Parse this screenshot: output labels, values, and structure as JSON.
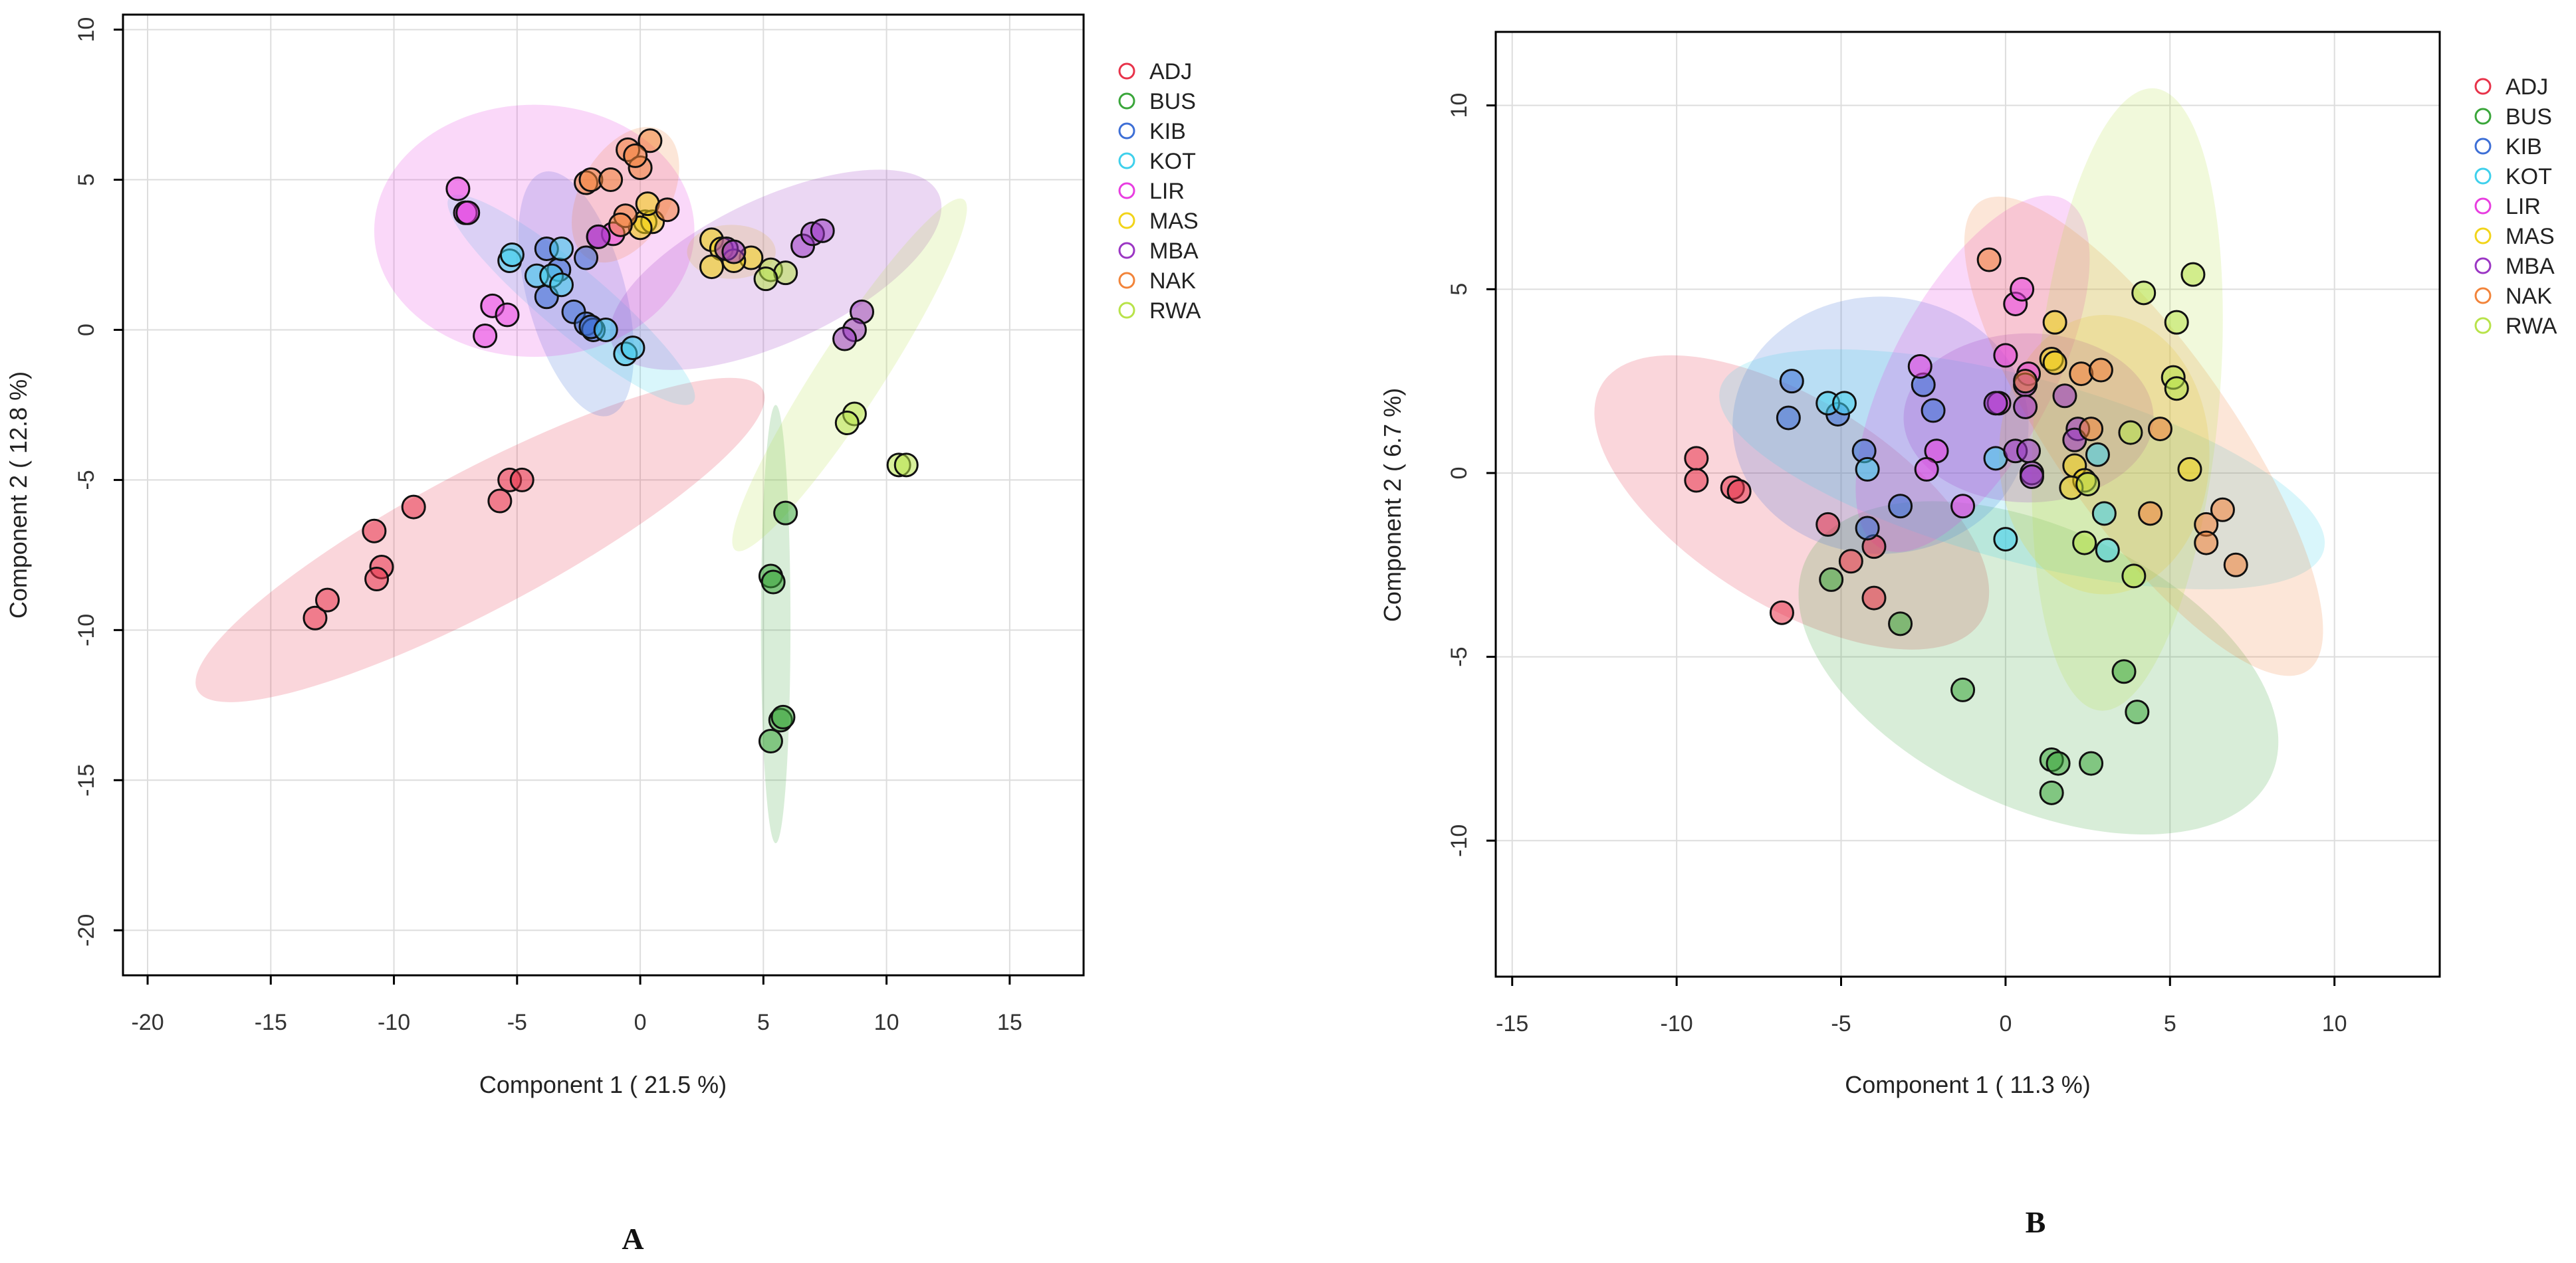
{
  "figure": {
    "group_colors": {
      "ADJ": "#e8334a",
      "BUS": "#3aa63a",
      "KIB": "#3d6fd6",
      "KOT": "#3fd0ec",
      "LIR": "#e83ee0",
      "MAS": "#f2d41a",
      "MBA": "#9b36c4",
      "NAK": "#f2843a",
      "RWA": "#b8e34a"
    }
  },
  "chart_data": [
    {
      "panel": "A",
      "type": "scatter",
      "xlabel": "Component 1 ( 21.5 %)",
      "ylabel": "Component 2 ( 12.8 %)",
      "xlim": [
        -21,
        18
      ],
      "ylim": [
        -21.5,
        10.5
      ],
      "xticks": [
        -20,
        -15,
        -10,
        -5,
        0,
        5,
        10,
        15
      ],
      "yticks": [
        -20,
        -15,
        -10,
        -5,
        0,
        5,
        10
      ],
      "grid": true,
      "legend_position": "top-right",
      "legend": [
        "ADJ",
        "BUS",
        "KIB",
        "KOT",
        "LIR",
        "MAS",
        "MBA",
        "NAK",
        "RWA"
      ],
      "ellipses": [
        {
          "group": "ADJ",
          "cx": -6.5,
          "cy": -7.0,
          "rx": 13,
          "ry": 2.3,
          "angle_deg": 28
        },
        {
          "group": "BUS",
          "cx": 5.5,
          "cy": -9.8,
          "rx": 0.6,
          "ry": 7.3,
          "angle_deg": 0
        },
        {
          "group": "KIB",
          "cx": -2.6,
          "cy": 1.2,
          "rx": 2.0,
          "ry": 4.2,
          "angle_deg": 15
        },
        {
          "group": "KOT",
          "cx": -2.8,
          "cy": 1.0,
          "rx": 1.3,
          "ry": 5.3,
          "angle_deg": 50
        },
        {
          "group": "LIR",
          "cx": -4.3,
          "cy": 3.3,
          "rx": 6.5,
          "ry": 4.2,
          "angle_deg": 0
        },
        {
          "group": "MAS",
          "cx": 3.7,
          "cy": 2.6,
          "rx": 1.8,
          "ry": 0.9,
          "angle_deg": 0
        },
        {
          "group": "MBA",
          "cx": 5.5,
          "cy": 2.0,
          "rx": 7.3,
          "ry": 2.4,
          "angle_deg": 25
        },
        {
          "group": "NAK",
          "cx": -0.6,
          "cy": 4.5,
          "rx": 3.0,
          "ry": 1.5,
          "angle_deg": 60
        },
        {
          "group": "RWA",
          "cx": 8.5,
          "cy": -1.5,
          "rx": 8.5,
          "ry": 1.1,
          "angle_deg": 57
        }
      ],
      "points": [
        {
          "group": "ADJ",
          "x": -13.2,
          "y": -9.6
        },
        {
          "group": "ADJ",
          "x": -12.7,
          "y": -9.0
        },
        {
          "group": "ADJ",
          "x": -10.8,
          "y": -6.7
        },
        {
          "group": "ADJ",
          "x": -10.5,
          "y": -7.9
        },
        {
          "group": "ADJ",
          "x": -10.7,
          "y": -8.3
        },
        {
          "group": "ADJ",
          "x": -9.2,
          "y": -5.9
        },
        {
          "group": "ADJ",
          "x": -5.7,
          "y": -5.7
        },
        {
          "group": "ADJ",
          "x": -5.3,
          "y": -5.0
        },
        {
          "group": "ADJ",
          "x": -4.8,
          "y": -5.0
        },
        {
          "group": "BUS",
          "x": 5.9,
          "y": -6.1
        },
        {
          "group": "BUS",
          "x": 5.3,
          "y": -8.2
        },
        {
          "group": "BUS",
          "x": 5.4,
          "y": -8.4
        },
        {
          "group": "BUS",
          "x": 5.7,
          "y": -13.0
        },
        {
          "group": "BUS",
          "x": 5.8,
          "y": -12.9
        },
        {
          "group": "BUS",
          "x": 5.3,
          "y": -13.7
        },
        {
          "group": "KIB",
          "x": -3.8,
          "y": 2.7
        },
        {
          "group": "KIB",
          "x": -3.3,
          "y": 2.0
        },
        {
          "group": "KIB",
          "x": -2.2,
          "y": 2.4
        },
        {
          "group": "KIB",
          "x": -3.8,
          "y": 1.1
        },
        {
          "group": "KIB",
          "x": -2.7,
          "y": 0.6
        },
        {
          "group": "KIB",
          "x": -2.2,
          "y": 0.2
        },
        {
          "group": "KIB",
          "x": -1.9,
          "y": 0.0
        },
        {
          "group": "KIB",
          "x": -2.0,
          "y": 0.1
        },
        {
          "group": "KOT",
          "x": -5.3,
          "y": 2.3
        },
        {
          "group": "KOT",
          "x": -5.2,
          "y": 2.5
        },
        {
          "group": "KOT",
          "x": -3.2,
          "y": 2.7
        },
        {
          "group": "KOT",
          "x": -4.2,
          "y": 1.8
        },
        {
          "group": "KOT",
          "x": -3.6,
          "y": 1.8
        },
        {
          "group": "KOT",
          "x": -3.2,
          "y": 1.5
        },
        {
          "group": "KOT",
          "x": -1.4,
          "y": 0.0
        },
        {
          "group": "KOT",
          "x": -0.6,
          "y": -0.8
        },
        {
          "group": "KOT",
          "x": -0.3,
          "y": -0.6
        },
        {
          "group": "LIR",
          "x": -7.4,
          "y": 4.7
        },
        {
          "group": "LIR",
          "x": -7.1,
          "y": 3.9
        },
        {
          "group": "LIR",
          "x": -7.0,
          "y": 3.9
        },
        {
          "group": "LIR",
          "x": -6.0,
          "y": 0.8
        },
        {
          "group": "LIR",
          "x": -5.4,
          "y": 0.5
        },
        {
          "group": "LIR",
          "x": -6.3,
          "y": -0.2
        },
        {
          "group": "LIR",
          "x": -1.1,
          "y": 3.2
        },
        {
          "group": "LIR",
          "x": -1.7,
          "y": 3.1
        },
        {
          "group": "MAS",
          "x": 2.9,
          "y": 3.0
        },
        {
          "group": "MAS",
          "x": 3.3,
          "y": 2.7
        },
        {
          "group": "MAS",
          "x": 2.9,
          "y": 2.1
        },
        {
          "group": "MAS",
          "x": 4.5,
          "y": 2.4
        },
        {
          "group": "MAS",
          "x": 3.8,
          "y": 2.3
        },
        {
          "group": "MAS",
          "x": 0.2,
          "y": 3.6
        },
        {
          "group": "MAS",
          "x": 0.5,
          "y": 3.6
        },
        {
          "group": "MAS",
          "x": 0.0,
          "y": 3.4
        },
        {
          "group": "MAS",
          "x": 0.3,
          "y": 4.2
        },
        {
          "group": "MBA",
          "x": -1.7,
          "y": 3.1
        },
        {
          "group": "MBA",
          "x": 3.5,
          "y": 2.7
        },
        {
          "group": "MBA",
          "x": 3.8,
          "y": 2.6
        },
        {
          "group": "MBA",
          "x": 6.6,
          "y": 2.8
        },
        {
          "group": "MBA",
          "x": 7.0,
          "y": 3.2
        },
        {
          "group": "MBA",
          "x": 7.4,
          "y": 3.3
        },
        {
          "group": "MBA",
          "x": 9.0,
          "y": 0.6
        },
        {
          "group": "MBA",
          "x": 8.7,
          "y": 0.0
        },
        {
          "group": "MBA",
          "x": 8.3,
          "y": -0.3
        },
        {
          "group": "NAK",
          "x": -2.2,
          "y": 4.9
        },
        {
          "group": "NAK",
          "x": -2.0,
          "y": 5.0
        },
        {
          "group": "NAK",
          "x": -1.2,
          "y": 5.0
        },
        {
          "group": "NAK",
          "x": -0.5,
          "y": 6.0
        },
        {
          "group": "NAK",
          "x": 0.4,
          "y": 6.3
        },
        {
          "group": "NAK",
          "x": 0.0,
          "y": 5.4
        },
        {
          "group": "NAK",
          "x": -0.2,
          "y": 5.8
        },
        {
          "group": "NAK",
          "x": -0.6,
          "y": 3.8
        },
        {
          "group": "NAK",
          "x": -0.8,
          "y": 3.5
        },
        {
          "group": "NAK",
          "x": 1.1,
          "y": 4.0
        },
        {
          "group": "RWA",
          "x": 5.3,
          "y": 2.0
        },
        {
          "group": "RWA",
          "x": 5.9,
          "y": 1.9
        },
        {
          "group": "RWA",
          "x": 5.1,
          "y": 1.7
        },
        {
          "group": "RWA",
          "x": 8.7,
          "y": -2.8
        },
        {
          "group": "RWA",
          "x": 8.4,
          "y": -3.1
        },
        {
          "group": "RWA",
          "x": 10.5,
          "y": -4.5
        },
        {
          "group": "RWA",
          "x": 10.8,
          "y": -4.5
        }
      ]
    },
    {
      "panel": "B",
      "type": "scatter",
      "xlabel": "Component 1 ( 11.3 %)",
      "ylabel": "Component 2 ( 6.7 %)",
      "xlim": [
        -15.5,
        13.2
      ],
      "ylim": [
        -13.7,
        12.0
      ],
      "xticks": [
        -15,
        -10,
        -5,
        0,
        5,
        10
      ],
      "yticks": [
        -10,
        -5,
        0,
        5,
        10
      ],
      "grid": true,
      "legend_position": "top-right",
      "legend": [
        "ADJ",
        "BUS",
        "KIB",
        "KOT",
        "LIR",
        "MAS",
        "MBA",
        "NAK",
        "RWA"
      ],
      "ellipses": [
        {
          "group": "ADJ",
          "cx": -6.5,
          "cy": -0.8,
          "rx": 6.8,
          "ry": 2.8,
          "angle_deg": -32
        },
        {
          "group": "BUS",
          "cx": 1.0,
          "cy": -5.3,
          "rx": 7.8,
          "ry": 3.8,
          "angle_deg": -25
        },
        {
          "group": "KIB",
          "cx": -3.8,
          "cy": 1.3,
          "rx": 4.5,
          "ry": 3.5,
          "angle_deg": 0
        },
        {
          "group": "KOT",
          "cx": 0.5,
          "cy": 0.1,
          "rx": 9.5,
          "ry": 2.5,
          "angle_deg": -15
        },
        {
          "group": "LIR",
          "cx": -1.0,
          "cy": 2.7,
          "rx": 6.0,
          "ry": 2.2,
          "angle_deg": 62
        },
        {
          "group": "MAS",
          "cx": 3.0,
          "cy": 0.5,
          "rx": 3.2,
          "ry": 3.8,
          "angle_deg": 0
        },
        {
          "group": "MBA",
          "cx": 0.7,
          "cy": 1.5,
          "rx": 3.8,
          "ry": 2.3,
          "angle_deg": 0
        },
        {
          "group": "NAK",
          "cx": 4.2,
          "cy": 1.0,
          "rx": 8.7,
          "ry": 2.4,
          "angle_deg": -55
        },
        {
          "group": "RWA",
          "cx": 3.7,
          "cy": 2.0,
          "rx": 9.5,
          "ry": 2.5,
          "angle_deg": 85
        }
      ],
      "points": [
        {
          "group": "ADJ",
          "x": -9.4,
          "y": 0.4
        },
        {
          "group": "ADJ",
          "x": -9.4,
          "y": -0.2
        },
        {
          "group": "ADJ",
          "x": -8.3,
          "y": -0.4
        },
        {
          "group": "ADJ",
          "x": -8.1,
          "y": -0.5
        },
        {
          "group": "ADJ",
          "x": -6.8,
          "y": -3.8
        },
        {
          "group": "ADJ",
          "x": -5.4,
          "y": -1.4
        },
        {
          "group": "ADJ",
          "x": -4.7,
          "y": -2.4
        },
        {
          "group": "ADJ",
          "x": -4.0,
          "y": -2.0
        },
        {
          "group": "ADJ",
          "x": -4.0,
          "y": -3.4
        },
        {
          "group": "BUS",
          "x": -5.3,
          "y": -2.9
        },
        {
          "group": "BUS",
          "x": -3.2,
          "y": -4.1
        },
        {
          "group": "BUS",
          "x": -1.3,
          "y": -5.9
        },
        {
          "group": "BUS",
          "x": 3.6,
          "y": -5.4
        },
        {
          "group": "BUS",
          "x": 4.0,
          "y": -6.5
        },
        {
          "group": "BUS",
          "x": 1.4,
          "y": -7.8
        },
        {
          "group": "BUS",
          "x": 1.6,
          "y": -7.9
        },
        {
          "group": "BUS",
          "x": 2.6,
          "y": -7.9
        },
        {
          "group": "BUS",
          "x": 1.4,
          "y": -8.7
        },
        {
          "group": "KIB",
          "x": -6.6,
          "y": 1.5
        },
        {
          "group": "KIB",
          "x": -6.5,
          "y": 2.5
        },
        {
          "group": "KIB",
          "x": -5.1,
          "y": 1.6
        },
        {
          "group": "KIB",
          "x": -4.3,
          "y": 0.6
        },
        {
          "group": "KIB",
          "x": -3.2,
          "y": -0.9
        },
        {
          "group": "KIB",
          "x": -4.2,
          "y": -1.5
        },
        {
          "group": "KIB",
          "x": -2.5,
          "y": 2.4
        },
        {
          "group": "KIB",
          "x": -2.2,
          "y": 1.7
        },
        {
          "group": "KOT",
          "x": -5.4,
          "y": 1.9
        },
        {
          "group": "KOT",
          "x": -4.9,
          "y": 1.9
        },
        {
          "group": "KOT",
          "x": -4.2,
          "y": 0.1
        },
        {
          "group": "KOT",
          "x": -0.3,
          "y": 0.4
        },
        {
          "group": "KOT",
          "x": 0.0,
          "y": -1.8
        },
        {
          "group": "KOT",
          "x": 2.8,
          "y": 0.5
        },
        {
          "group": "KOT",
          "x": 3.0,
          "y": -1.1
        },
        {
          "group": "KOT",
          "x": 3.1,
          "y": -2.1
        },
        {
          "group": "LIR",
          "x": -2.6,
          "y": 2.9
        },
        {
          "group": "LIR",
          "x": -2.1,
          "y": 0.6
        },
        {
          "group": "LIR",
          "x": -2.4,
          "y": 0.1
        },
        {
          "group": "LIR",
          "x": -1.3,
          "y": -0.9
        },
        {
          "group": "LIR",
          "x": -0.2,
          "y": 1.9
        },
        {
          "group": "LIR",
          "x": 0.0,
          "y": 3.2
        },
        {
          "group": "LIR",
          "x": 0.3,
          "y": 4.6
        },
        {
          "group": "LIR",
          "x": 0.5,
          "y": 5.0
        },
        {
          "group": "LIR",
          "x": 0.7,
          "y": 2.7
        },
        {
          "group": "MAS",
          "x": 1.5,
          "y": 4.1
        },
        {
          "group": "MAS",
          "x": 1.4,
          "y": 3.1
        },
        {
          "group": "MAS",
          "x": 1.5,
          "y": 3.0
        },
        {
          "group": "MAS",
          "x": 2.1,
          "y": 0.2
        },
        {
          "group": "MAS",
          "x": 2.4,
          "y": -0.2
        },
        {
          "group": "MAS",
          "x": 2.0,
          "y": -0.4
        },
        {
          "group": "MAS",
          "x": 5.6,
          "y": 0.1
        },
        {
          "group": "MBA",
          "x": -0.3,
          "y": 1.9
        },
        {
          "group": "MBA",
          "x": 0.3,
          "y": 0.6
        },
        {
          "group": "MBA",
          "x": 0.6,
          "y": 2.4
        },
        {
          "group": "MBA",
          "x": 0.6,
          "y": 1.8
        },
        {
          "group": "MBA",
          "x": 0.7,
          "y": 0.6
        },
        {
          "group": "MBA",
          "x": 0.8,
          "y": 0.0
        },
        {
          "group": "MBA",
          "x": 0.8,
          "y": -0.1
        },
        {
          "group": "MBA",
          "x": 1.8,
          "y": 2.1
        },
        {
          "group": "MBA",
          "x": 2.2,
          "y": 1.2
        },
        {
          "group": "MBA",
          "x": 2.1,
          "y": 0.9
        },
        {
          "group": "NAK",
          "x": -0.5,
          "y": 5.8
        },
        {
          "group": "NAK",
          "x": 0.6,
          "y": 2.5
        },
        {
          "group": "NAK",
          "x": 2.3,
          "y": 2.7
        },
        {
          "group": "NAK",
          "x": 2.9,
          "y": 2.8
        },
        {
          "group": "NAK",
          "x": 2.6,
          "y": 1.2
        },
        {
          "group": "NAK",
          "x": 4.7,
          "y": 1.2
        },
        {
          "group": "NAK",
          "x": 4.4,
          "y": -1.1
        },
        {
          "group": "NAK",
          "x": 6.1,
          "y": -1.4
        },
        {
          "group": "NAK",
          "x": 6.1,
          "y": -1.9
        },
        {
          "group": "NAK",
          "x": 6.6,
          "y": -1.0
        },
        {
          "group": "NAK",
          "x": 7.0,
          "y": -2.5
        },
        {
          "group": "RWA",
          "x": 4.2,
          "y": 4.9
        },
        {
          "group": "RWA",
          "x": 5.7,
          "y": 5.4
        },
        {
          "group": "RWA",
          "x": 5.2,
          "y": 4.1
        },
        {
          "group": "RWA",
          "x": 5.1,
          "y": 2.6
        },
        {
          "group": "RWA",
          "x": 5.2,
          "y": 2.3
        },
        {
          "group": "RWA",
          "x": 3.8,
          "y": 1.1
        },
        {
          "group": "RWA",
          "x": 2.4,
          "y": -1.9
        },
        {
          "group": "RWA",
          "x": 3.9,
          "y": -2.8
        },
        {
          "group": "RWA",
          "x": 2.5,
          "y": -0.3
        }
      ]
    }
  ],
  "panels": {
    "A": {
      "label": "A"
    },
    "B": {
      "label": "B"
    }
  }
}
